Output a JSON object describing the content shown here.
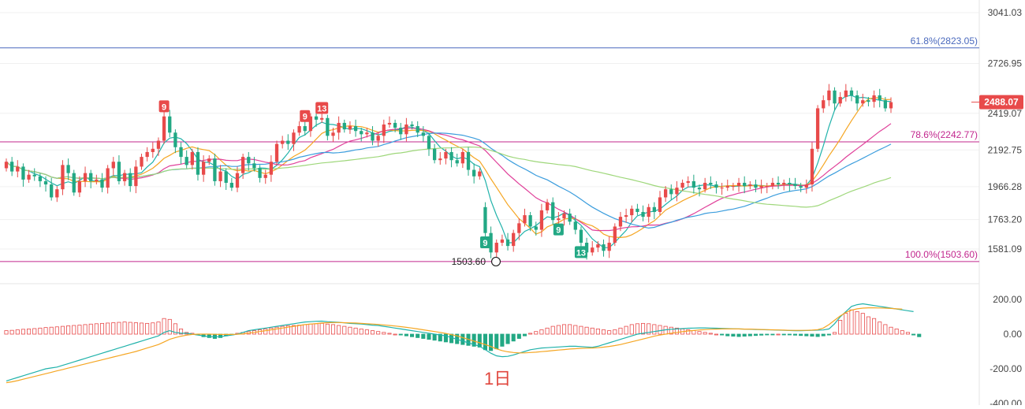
{
  "chart_data": {
    "type": "candlestick",
    "period_label": "1日",
    "price_axis": {
      "ticks": [
        "3041.03",
        "2726.95",
        "2419.07",
        "2192.75",
        "1966.28",
        "1763.20",
        "1581.09"
      ],
      "tick_values": [
        3041.03,
        2726.95,
        2419.07,
        2192.75,
        1966.28,
        1763.2,
        1581.09
      ],
      "range": [
        1440,
        3080
      ]
    },
    "current_price": {
      "value": 2488.07,
      "label": "2488.07",
      "color": "#e84a4a"
    },
    "fib_levels": [
      {
        "label": "61.8%(2823.05)",
        "value": 2823.05,
        "color": "#4a69bd"
      },
      {
        "label": "78.6%(2242.77)",
        "value": 2242.77,
        "color": "#c2278e"
      },
      {
        "label": "100.0%(1503.60)",
        "value": 1503.6,
        "color": "#c2278e"
      }
    ],
    "low_marker": {
      "label": "1503.60",
      "value": 1503.6
    },
    "badges": [
      {
        "text": "9",
        "color": "#e84a4a",
        "index": 28,
        "position": "above"
      },
      {
        "text": "9",
        "color": "#e84a4a",
        "index": 53,
        "position": "above"
      },
      {
        "text": "13",
        "color": "#e84a4a",
        "index": 56,
        "position": "above"
      },
      {
        "text": "9",
        "color": "#22a884",
        "index": 85,
        "position": "below"
      },
      {
        "text": "9",
        "color": "#22a884",
        "index": 98,
        "position": "below"
      },
      {
        "text": "13",
        "color": "#22a884",
        "index": 102,
        "position": "below"
      }
    ],
    "ma_colors": [
      "#20b2aa",
      "#f5a623",
      "#e0409a",
      "#3b9ddd",
      "#9ed77a"
    ],
    "candle_colors": {
      "up": "#e84a4a",
      "down": "#22a884"
    },
    "close": [
      2120,
      2060,
      2090,
      2010,
      2040,
      2030,
      2000,
      1980,
      1900,
      1950,
      2100,
      2050,
      1930,
      2000,
      2050,
      2000,
      2010,
      1960,
      2080,
      2120,
      2000,
      2050,
      1970,
      2090,
      2150,
      2180,
      2200,
      2250,
      2400,
      2300,
      2210,
      2150,
      2100,
      2180,
      2040,
      2120,
      2140,
      2000,
      2060,
      1990,
      1960,
      2050,
      2150,
      2110,
      2080,
      2020,
      2040,
      2120,
      2230,
      2250,
      2230,
      2300,
      2340,
      2310,
      2400,
      2380,
      2390,
      2280,
      2300,
      2360,
      2320,
      2340,
      2310,
      2290,
      2300,
      2250,
      2280,
      2350,
      2360,
      2330,
      2290,
      2350,
      2340,
      2300,
      2280,
      2200,
      2130,
      2140,
      2180,
      2130,
      2110,
      2180,
      2070,
      2030,
      2060,
      1680,
      1560,
      1620,
      1640,
      1600,
      1680,
      1740,
      1790,
      1720,
      1700,
      1820,
      1870,
      1760,
      1770,
      1800,
      1750,
      1700,
      1620,
      1560,
      1590,
      1610,
      1570,
      1620,
      1720,
      1780,
      1790,
      1830,
      1810,
      1780,
      1840,
      1810,
      1900,
      1950,
      1920,
      1960,
      1990,
      2000,
      1960,
      1950,
      1990,
      1980,
      1960,
      1960,
      1970,
      1970,
      1990,
      1970,
      1980,
      1960,
      1970,
      1970,
      1990,
      1980,
      1990,
      1980,
      1970,
      1960,
      1980,
      2200,
      2450,
      2500,
      2560,
      2480,
      2520,
      2560,
      2530,
      2480,
      2500,
      2490,
      2530,
      2500,
      2450,
      2488
    ],
    "open": [
      2080,
      2120,
      2060,
      2090,
      2010,
      2040,
      2030,
      2000,
      1980,
      1900,
      1950,
      2100,
      2050,
      1930,
      2000,
      2050,
      2000,
      2010,
      1960,
      2080,
      2120,
      2000,
      2050,
      1970,
      2090,
      2150,
      2180,
      2200,
      2250,
      2400,
      2300,
      2210,
      2150,
      2100,
      2180,
      2040,
      2120,
      2140,
      2000,
      2060,
      1990,
      1960,
      2050,
      2150,
      2110,
      2080,
      2020,
      2040,
      2120,
      2230,
      2250,
      2230,
      2300,
      2340,
      2310,
      2400,
      2380,
      2390,
      2280,
      2300,
      2360,
      2320,
      2340,
      2310,
      2290,
      2300,
      2250,
      2280,
      2350,
      2360,
      2330,
      2290,
      2350,
      2340,
      2300,
      2280,
      2200,
      2130,
      2140,
      2180,
      2130,
      2110,
      2180,
      2070,
      2030,
      1840,
      1680,
      1560,
      1620,
      1640,
      1600,
      1680,
      1740,
      1790,
      1720,
      1700,
      1820,
      1870,
      1760,
      1770,
      1800,
      1750,
      1700,
      1620,
      1560,
      1590,
      1610,
      1570,
      1620,
      1720,
      1780,
      1790,
      1830,
      1810,
      1780,
      1840,
      1810,
      1900,
      1950,
      1920,
      1960,
      1990,
      2000,
      1960,
      1950,
      1990,
      1980,
      1960,
      1960,
      1970,
      1970,
      1990,
      1970,
      1980,
      1960,
      1970,
      1970,
      1990,
      1980,
      1990,
      1980,
      1970,
      1960,
      1980,
      2200,
      2450,
      2500,
      2560,
      2480,
      2520,
      2560,
      2530,
      2480,
      2500,
      2490,
      2530,
      2500,
      2450
    ],
    "macd_axis": {
      "ticks": [
        "200.00",
        "0.00",
        "-200.00",
        "-400.00"
      ],
      "tick_values": [
        200,
        0,
        -200,
        -400
      ]
    },
    "macd_hist": [
      20,
      22,
      25,
      28,
      30,
      32,
      35,
      38,
      40,
      42,
      45,
      48,
      50,
      52,
      55,
      58,
      60,
      62,
      64,
      66,
      68,
      70,
      68,
      66,
      64,
      62,
      65,
      70,
      90,
      85,
      60,
      30,
      10,
      5,
      -5,
      -15,
      -20,
      -25,
      -20,
      -10,
      -5,
      5,
      10,
      15,
      20,
      25,
      30,
      35,
      40,
      45,
      48,
      50,
      52,
      55,
      58,
      60,
      62,
      58,
      55,
      50,
      45,
      40,
      35,
      30,
      25,
      20,
      15,
      10,
      5,
      0,
      -5,
      -10,
      -15,
      -20,
      -25,
      -30,
      -35,
      -40,
      -45,
      -50,
      -55,
      -60,
      -65,
      -70,
      -75,
      -90,
      -95,
      -85,
      -70,
      -55,
      -40,
      -25,
      -10,
      5,
      15,
      25,
      35,
      45,
      50,
      55,
      55,
      50,
      45,
      40,
      35,
      30,
      25,
      20,
      25,
      35,
      45,
      55,
      60,
      62,
      60,
      55,
      50,
      45,
      40,
      35,
      30,
      25,
      20,
      15,
      10,
      5,
      0,
      -5,
      -10,
      -12,
      -14,
      -12,
      -10,
      -8,
      -6,
      -4,
      -2,
      0,
      -2,
      -4,
      -6,
      -8,
      -10,
      -12,
      -14,
      -10,
      -5,
      10,
      80,
      120,
      140,
      130,
      120,
      100,
      90,
      70,
      55,
      40,
      30,
      20,
      10,
      -5,
      -15
    ],
    "macd_dif": [
      -270,
      -260,
      -250,
      -240,
      -230,
      -220,
      -210,
      -200,
      -195,
      -190,
      -180,
      -170,
      -160,
      -150,
      -140,
      -130,
      -120,
      -110,
      -100,
      -90,
      -80,
      -70,
      -60,
      -50,
      -40,
      -30,
      -20,
      -10,
      10,
      20,
      10,
      5,
      5,
      0,
      -5,
      -10,
      -15,
      -15,
      -15,
      -10,
      -5,
      0,
      10,
      20,
      25,
      30,
      35,
      40,
      45,
      50,
      55,
      60,
      65,
      70,
      72,
      74,
      75,
      72,
      70,
      68,
      65,
      62,
      60,
      58,
      55,
      52,
      50,
      45,
      40,
      35,
      30,
      25,
      20,
      15,
      10,
      5,
      0,
      -5,
      -10,
      -20,
      -30,
      -40,
      -50,
      -60,
      -70,
      -90,
      -110,
      -125,
      -130,
      -128,
      -120,
      -110,
      -100,
      -90,
      -85,
      -80,
      -78,
      -76,
      -74,
      -72,
      -70,
      -70,
      -72,
      -74,
      -76,
      -70,
      -60,
      -50,
      -40,
      -30,
      -20,
      -10,
      0,
      5,
      10,
      15,
      20,
      25,
      28,
      30,
      32,
      34,
      35,
      36,
      36,
      35,
      34,
      33,
      32,
      31,
      30,
      29,
      28,
      27,
      26,
      25,
      24,
      23,
      22,
      21,
      20,
      20,
      21,
      22,
      23,
      24,
      30,
      60,
      100,
      130,
      160,
      170,
      175,
      170,
      165,
      160,
      155,
      150,
      145,
      140,
      135,
      130
    ],
    "macd_dea": [
      -280,
      -275,
      -268,
      -260,
      -252,
      -244,
      -236,
      -228,
      -220,
      -212,
      -204,
      -196,
      -188,
      -180,
      -172,
      -164,
      -156,
      -148,
      -140,
      -132,
      -124,
      -116,
      -108,
      -100,
      -90,
      -80,
      -70,
      -60,
      -45,
      -30,
      -20,
      -12,
      -6,
      -2,
      0,
      0,
      0,
      -1,
      -2,
      -2,
      -2,
      -1,
      2,
      6,
      10,
      15,
      20,
      25,
      30,
      35,
      40,
      45,
      50,
      55,
      58,
      61,
      64,
      66,
      67,
      67,
      66,
      65,
      64,
      62,
      60,
      58,
      56,
      53,
      50,
      47,
      43,
      39,
      35,
      30,
      25,
      20,
      15,
      10,
      4,
      -3,
      -10,
      -20,
      -30,
      -40,
      -50,
      -60,
      -72,
      -85,
      -95,
      -102,
      -106,
      -108,
      -108,
      -106,
      -104,
      -101,
      -98,
      -95,
      -92,
      -89,
      -86,
      -84,
      -82,
      -81,
      -80,
      -78,
      -75,
      -71,
      -66,
      -60,
      -52,
      -44,
      -36,
      -28,
      -20,
      -12,
      -5,
      0,
      5,
      10,
      14,
      18,
      21,
      24,
      26,
      28,
      29,
      30,
      30,
      30,
      30,
      29,
      29,
      28,
      27,
      26,
      25,
      24,
      23,
      22,
      22,
      22,
      22,
      23,
      26,
      35,
      55,
      80,
      105,
      125,
      138,
      146,
      150,
      152,
      152,
      151,
      150,
      148,
      146,
      144
    ]
  }
}
